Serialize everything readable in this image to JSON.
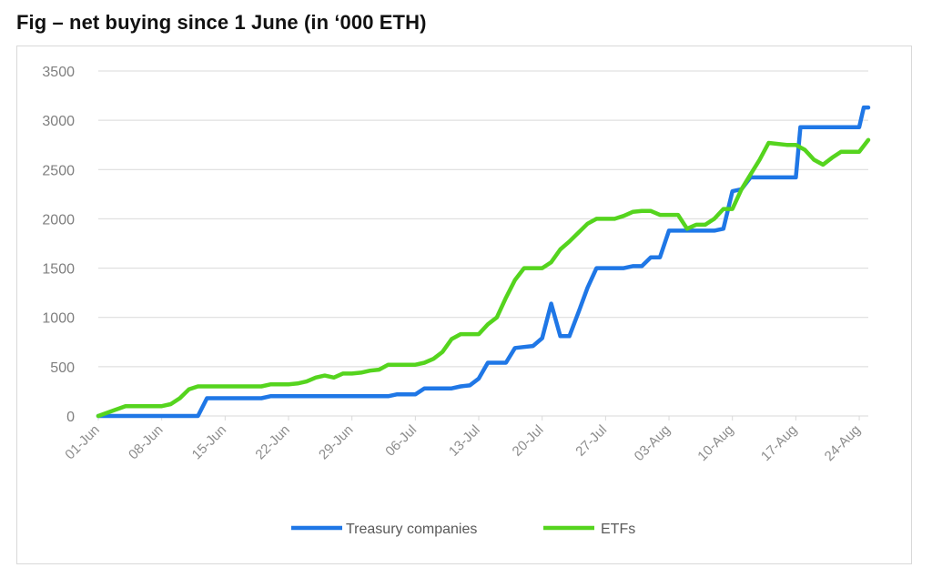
{
  "figure": {
    "title": "Fig – net buying since 1 June (in ‘000 ETH)"
  },
  "chart_data": {
    "type": "line",
    "title": "",
    "xlabel": "",
    "ylabel": "",
    "ylim": [
      0,
      3500
    ],
    "yticks": [
      0,
      500,
      1000,
      1500,
      2000,
      2500,
      3000,
      3500
    ],
    "grid": true,
    "legend_position": "bottom",
    "x_start": "01-Jun",
    "x_end": "25-Aug",
    "xtick_labels": [
      "01-Jun",
      "08-Jun",
      "15-Jun",
      "22-Jun",
      "29-Jun",
      "06-Jul",
      "13-Jul",
      "20-Jul",
      "27-Jul",
      "03-Aug",
      "10-Aug",
      "17-Aug",
      "24-Aug"
    ],
    "series": [
      {
        "name": "Treasury companies",
        "color": "#1f77e6",
        "points": [
          [
            "01-Jun",
            0
          ],
          [
            "12-Jun",
            0
          ],
          [
            "13-Jun",
            180
          ],
          [
            "19-Jun",
            180
          ],
          [
            "20-Jun",
            200
          ],
          [
            "03-Jul",
            200
          ],
          [
            "04-Jul",
            220
          ],
          [
            "06-Jul",
            220
          ],
          [
            "07-Jul",
            280
          ],
          [
            "10-Jul",
            280
          ],
          [
            "11-Jul",
            300
          ],
          [
            "12-Jul",
            310
          ],
          [
            "13-Jul",
            380
          ],
          [
            "14-Jul",
            540
          ],
          [
            "16-Jul",
            540
          ],
          [
            "17-Jul",
            690
          ],
          [
            "18-Jul",
            700
          ],
          [
            "19-Jul",
            710
          ],
          [
            "20-Jul",
            790
          ],
          [
            "21-Jul",
            1140
          ],
          [
            "22-Jul",
            810
          ],
          [
            "23-Jul",
            810
          ],
          [
            "24-Jul",
            1050
          ],
          [
            "25-Jul",
            1300
          ],
          [
            "26-Jul",
            1500
          ],
          [
            "29-Jul",
            1500
          ],
          [
            "30-Jul",
            1520
          ],
          [
            "31-Jul",
            1520
          ],
          [
            "01-Aug",
            1610
          ],
          [
            "02-Aug",
            1610
          ],
          [
            "03-Aug",
            1880
          ],
          [
            "08-Aug",
            1880
          ],
          [
            "09-Aug",
            1900
          ],
          [
            "10-Aug",
            2280
          ],
          [
            "11-Aug",
            2300
          ],
          [
            "12-Aug",
            2420
          ],
          [
            "17-Aug",
            2420
          ],
          [
            "17.5-Aug",
            2930
          ],
          [
            "24-Aug",
            2930
          ],
          [
            "24.5-Aug",
            3130
          ],
          [
            "25-Aug",
            3130
          ]
        ]
      },
      {
        "name": "ETFs",
        "color": "#55d41e",
        "points": [
          [
            "01-Jun",
            0
          ],
          [
            "04-Jun",
            100
          ],
          [
            "08-Jun",
            100
          ],
          [
            "09-Jun",
            120
          ],
          [
            "10-Jun",
            180
          ],
          [
            "11-Jun",
            270
          ],
          [
            "12-Jun",
            300
          ],
          [
            "19-Jun",
            300
          ],
          [
            "20-Jun",
            320
          ],
          [
            "22-Jun",
            320
          ],
          [
            "23-Jun",
            330
          ],
          [
            "24-Jun",
            350
          ],
          [
            "25-Jun",
            390
          ],
          [
            "26-Jun",
            410
          ],
          [
            "27-Jun",
            390
          ],
          [
            "28-Jun",
            430
          ],
          [
            "29-Jun",
            430
          ],
          [
            "30-Jun",
            440
          ],
          [
            "01-Jul",
            460
          ],
          [
            "02-Jul",
            470
          ],
          [
            "03-Jul",
            520
          ],
          [
            "06-Jul",
            520
          ],
          [
            "07-Jul",
            540
          ],
          [
            "08-Jul",
            580
          ],
          [
            "09-Jul",
            650
          ],
          [
            "10-Jul",
            780
          ],
          [
            "11-Jul",
            830
          ],
          [
            "13-Jul",
            830
          ],
          [
            "14-Jul",
            930
          ],
          [
            "15-Jul",
            1000
          ],
          [
            "16-Jul",
            1200
          ],
          [
            "17-Jul",
            1380
          ],
          [
            "18-Jul",
            1500
          ],
          [
            "20-Jul",
            1500
          ],
          [
            "21-Jul",
            1560
          ],
          [
            "22-Jul",
            1690
          ],
          [
            "23-Jul",
            1770
          ],
          [
            "24-Jul",
            1860
          ],
          [
            "25-Jul",
            1950
          ],
          [
            "26-Jul",
            2000
          ],
          [
            "28-Jul",
            2000
          ],
          [
            "29-Jul",
            2030
          ],
          [
            "30-Jul",
            2070
          ],
          [
            "31-Jul",
            2080
          ],
          [
            "01-Aug",
            2080
          ],
          [
            "02-Aug",
            2040
          ],
          [
            "03-Aug",
            2040
          ],
          [
            "04-Aug",
            2040
          ],
          [
            "05-Aug",
            1900
          ],
          [
            "06-Aug",
            1940
          ],
          [
            "07-Aug",
            1940
          ],
          [
            "08-Aug",
            2000
          ],
          [
            "09-Aug",
            2100
          ],
          [
            "10-Aug",
            2100
          ],
          [
            "11-Aug",
            2300
          ],
          [
            "12-Aug",
            2450
          ],
          [
            "13-Aug",
            2600
          ],
          [
            "14-Aug",
            2770
          ],
          [
            "16-Aug",
            2750
          ],
          [
            "17-Aug",
            2750
          ],
          [
            "18-Aug",
            2700
          ],
          [
            "19-Aug",
            2600
          ],
          [
            "20-Aug",
            2550
          ],
          [
            "21-Aug",
            2620
          ],
          [
            "22-Aug",
            2680
          ],
          [
            "24-Aug",
            2680
          ],
          [
            "25-Aug",
            2800
          ]
        ]
      }
    ]
  }
}
